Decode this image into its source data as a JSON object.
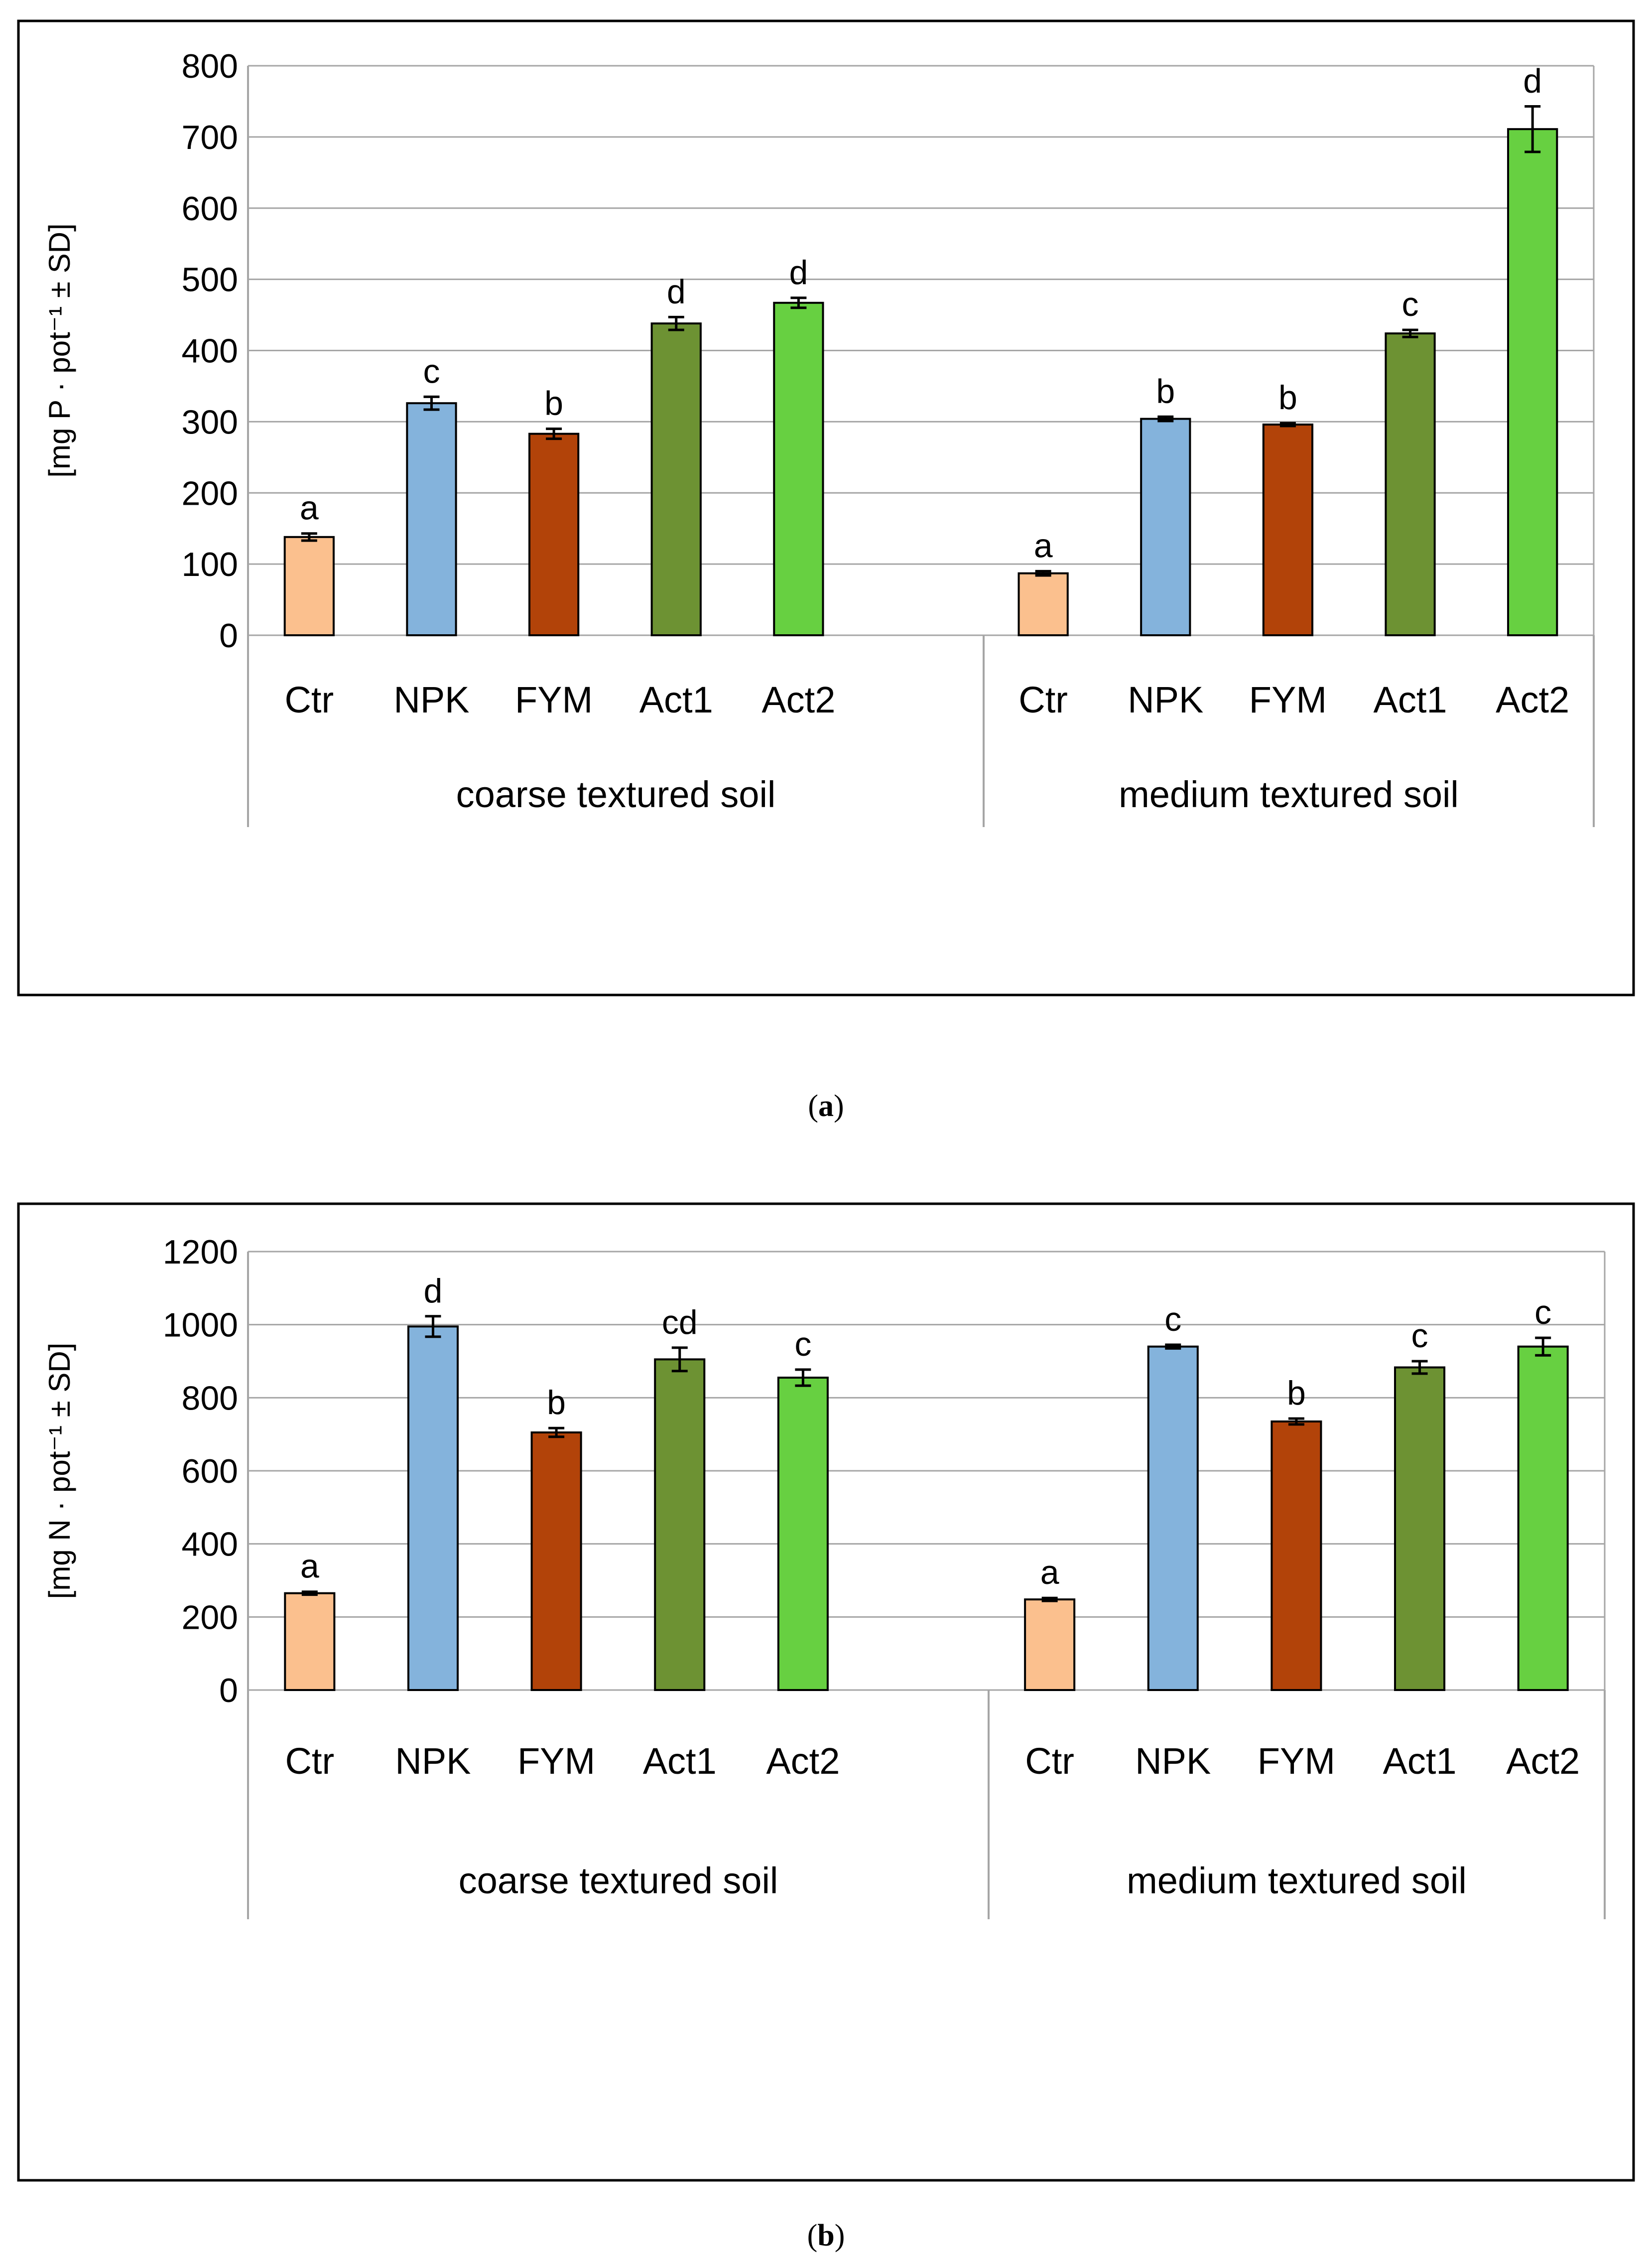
{
  "chart_data": [
    {
      "type": "bar",
      "title": "",
      "ylabel": "[mg P · pot⁻¹ ± SD]",
      "ylim": [
        0,
        800
      ],
      "yticks": [
        0,
        100,
        200,
        300,
        400,
        500,
        600,
        700,
        800
      ],
      "grid": true,
      "groups": [
        {
          "label": "coarse textured soil",
          "categories": [
            "Ctr",
            "NPK",
            "FYM",
            "Act1",
            "Act2"
          ],
          "values": [
            138,
            326,
            283,
            438,
            467
          ],
          "errors": [
            5,
            9,
            7,
            9,
            7
          ],
          "letters": [
            "a",
            "c",
            "b",
            "d",
            "d"
          ]
        },
        {
          "label": "medium textured soil",
          "categories": [
            "Ctr",
            "NPK",
            "FYM",
            "Act1",
            "Act2"
          ],
          "values": [
            87,
            304,
            296,
            424,
            711
          ],
          "errors": [
            3,
            3,
            2,
            5,
            32
          ],
          "letters": [
            "a",
            "b",
            "b",
            "c",
            "d"
          ]
        }
      ]
    },
    {
      "type": "bar",
      "title": "",
      "ylabel": "[mg N · pot⁻¹ ± SD]",
      "ylim": [
        0,
        1200
      ],
      "yticks": [
        0,
        200,
        400,
        600,
        800,
        1000,
        1200
      ],
      "grid": true,
      "groups": [
        {
          "label": "coarse textured soil",
          "categories": [
            "Ctr",
            "NPK",
            "FYM",
            "Act1",
            "Act2"
          ],
          "values": [
            265,
            995,
            705,
            905,
            855
          ],
          "errors": [
            4,
            28,
            12,
            32,
            22
          ],
          "letters": [
            "a",
            "d",
            "b",
            "cd",
            "c"
          ]
        },
        {
          "label": "medium textured soil",
          "categories": [
            "Ctr",
            "NPK",
            "FYM",
            "Act1",
            "Act2"
          ],
          "values": [
            248,
            940,
            735,
            883,
            940
          ],
          "errors": [
            4,
            5,
            8,
            17,
            24
          ],
          "letters": [
            "a",
            "c",
            "b",
            "c",
            "c"
          ]
        }
      ]
    }
  ],
  "colors": {
    "Ctr": "#fbc08e",
    "NPK": "#84b3dc",
    "FYM": "#b24309",
    "Act1": "#6d9233",
    "Act2": "#67d041"
  },
  "captions": {
    "a": "a",
    "b": "b"
  }
}
